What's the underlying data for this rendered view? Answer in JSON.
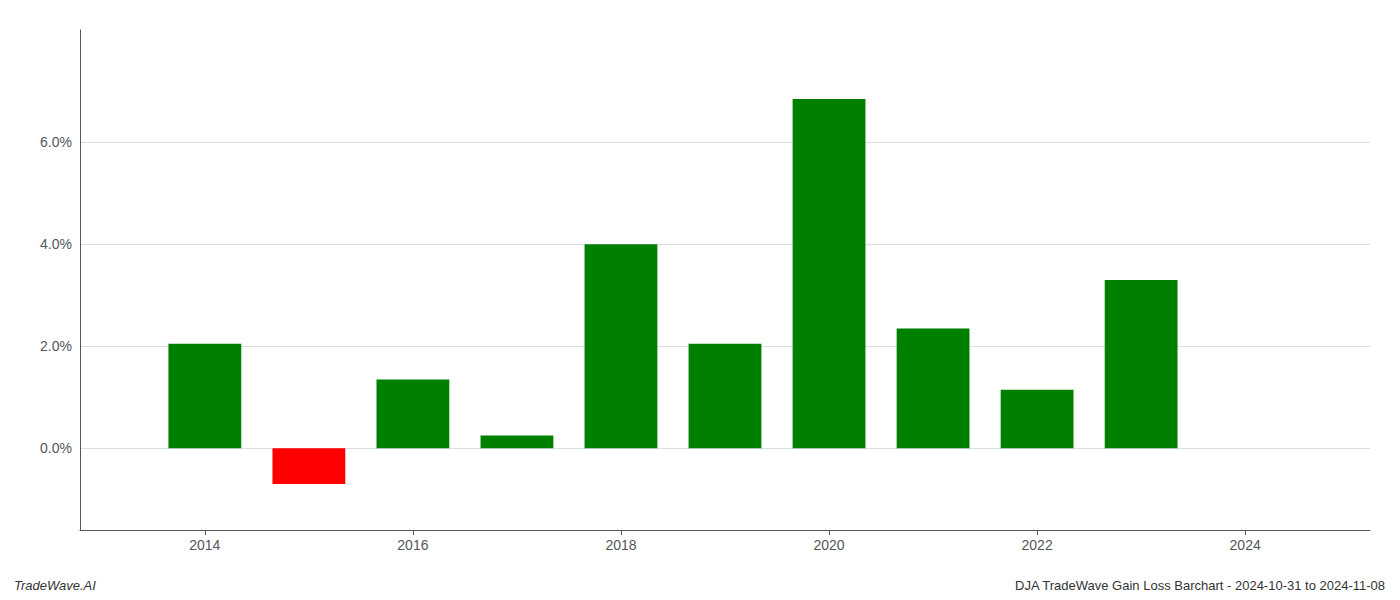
{
  "chart_data": {
    "type": "bar",
    "x": [
      2014,
      2015,
      2016,
      2017,
      2018,
      2019,
      2020,
      2021,
      2022,
      2023
    ],
    "values": [
      0.0205,
      -0.007,
      0.0135,
      0.0025,
      0.04,
      0.0205,
      0.0685,
      0.0235,
      0.0115,
      0.033
    ],
    "colors": [
      "#008000",
      "#ff0000",
      "#008000",
      "#008000",
      "#008000",
      "#008000",
      "#008000",
      "#008000",
      "#008000",
      "#008000"
    ],
    "xlim": [
      2012.8,
      2025.2
    ],
    "xticks": [
      2014,
      2016,
      2018,
      2020,
      2022,
      2024
    ],
    "ylim": [
      -0.016,
      0.082
    ],
    "yticks": [
      {
        "value": 0.0,
        "label": "0.0%"
      },
      {
        "value": 0.02,
        "label": "2.0%"
      },
      {
        "value": 0.04,
        "label": "4.0%"
      },
      {
        "value": 0.06,
        "label": "6.0%"
      }
    ],
    "grid": true,
    "annotations": [
      "TradeWave.AI",
      "DJA TradeWave Gain Loss Barchart - 2024-10-31 to 2024-11-08"
    ]
  }
}
